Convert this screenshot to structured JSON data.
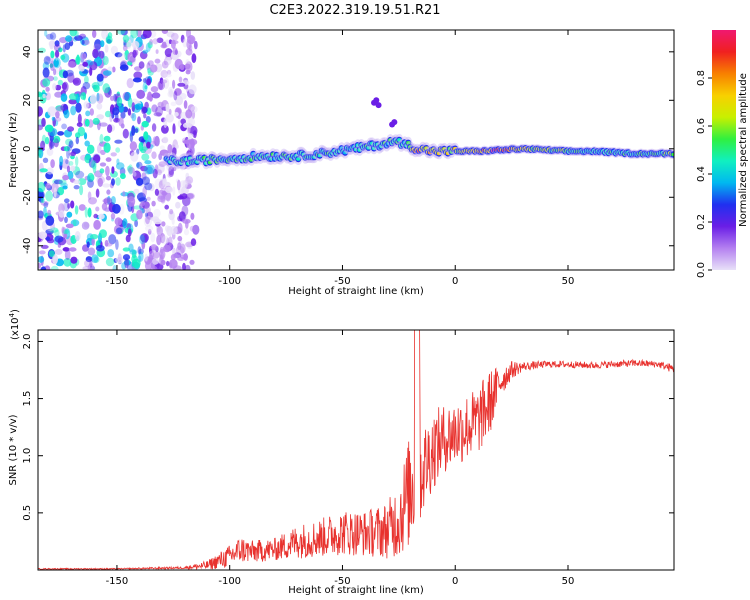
{
  "figure_title": "C2E3.2022.319.19.51.R21",
  "colors": {
    "snr_line": "#e8322e",
    "axes": "#000000"
  },
  "chart_data": [
    {
      "type": "heatmap",
      "name": "spectrogram",
      "title": "",
      "xlabel": "Height of straight line (km)",
      "ylabel": "Frequency (Hz)",
      "xlim": [
        -185,
        97
      ],
      "ylim": [
        -50,
        49
      ],
      "x_ticks": [
        -150,
        -100,
        -50,
        0,
        50
      ],
      "x_tick_labels": [
        "-150",
        "-100",
        "-50",
        "0",
        "50"
      ],
      "y_ticks": [
        -40,
        -20,
        0,
        20,
        40
      ],
      "y_tick_labels": [
        "-40",
        "-20",
        "0",
        "20",
        "40"
      ],
      "colorbar": {
        "label": "Normalized spectral amplitude",
        "range": [
          0.0,
          1.0
        ],
        "ticks": [
          0.0,
          0.2,
          0.4,
          0.6,
          0.8
        ],
        "tick_labels": [
          "0.0",
          "0.2",
          "0.4",
          "0.6",
          "0.8"
        ],
        "colormap": [
          "#e8e0f8",
          "#b480f0",
          "#6a1ee6",
          "#2030f0",
          "#00b8f0",
          "#10f0c0",
          "#30f040",
          "#c8f000",
          "#f8d000",
          "#f88000",
          "#f02020",
          "#f01870"
        ]
      },
      "ridge": {
        "x": [
          -128,
          -115,
          -100,
          -85,
          -70,
          -60,
          -52,
          -45,
          -38,
          -32,
          -27,
          -22,
          -17,
          -10,
          0,
          10,
          20,
          30,
          40,
          50,
          60,
          70,
          80,
          90,
          97
        ],
        "frequency": [
          -5,
          -5,
          -4,
          -3,
          -3,
          -2,
          -1,
          0,
          1,
          2,
          3,
          2,
          0,
          -1,
          -1,
          -1,
          -0.5,
          0,
          -0.5,
          -1,
          -1,
          -1.5,
          -2,
          -2,
          -2
        ],
        "amplitude": [
          0.45,
          0.5,
          0.5,
          0.48,
          0.48,
          0.5,
          0.45,
          0.45,
          0.5,
          0.45,
          0.5,
          0.45,
          0.9,
          0.7,
          0.65,
          0.75,
          0.95,
          0.7,
          0.65,
          0.55,
          0.45,
          0.5,
          0.5,
          0.55,
          0.6
        ]
      },
      "noise_region_x": [
        -185,
        -115
      ]
    },
    {
      "type": "line",
      "name": "snr",
      "title": "",
      "xlabel": "Height of straight line (km)",
      "ylabel": "SNR (10 * v/v)",
      "y_scale_note": "(x10",
      "y_scale_exp": "4",
      "y_scale_close": ")",
      "xlim": [
        -185,
        97
      ],
      "ylim": [
        0.0,
        2.1
      ],
      "x_ticks": [
        -150,
        -100,
        -50,
        0,
        50
      ],
      "x_tick_labels": [
        "-150",
        "-100",
        "-50",
        "0",
        "50"
      ],
      "y_ticks": [
        0.5,
        1.0,
        1.5,
        2.0
      ],
      "y_tick_labels": [
        "0.5",
        "1.0",
        "1.5",
        "2.0"
      ],
      "envelope": {
        "x": [
          -185,
          -150,
          -120,
          -110,
          -100,
          -95,
          -90,
          -80,
          -70,
          -60,
          -50,
          -40,
          -30,
          -25,
          -20,
          -17,
          -15,
          -10,
          -5,
          0,
          5,
          10,
          15,
          20,
          25,
          30,
          40,
          50,
          60,
          70,
          80,
          90,
          97
        ],
        "mean": [
          0.01,
          0.01,
          0.02,
          0.04,
          0.12,
          0.18,
          0.16,
          0.18,
          0.25,
          0.28,
          0.33,
          0.32,
          0.35,
          0.45,
          0.7,
          0.9,
          0.85,
          1.05,
          1.15,
          1.2,
          1.25,
          1.3,
          1.45,
          1.65,
          1.75,
          1.78,
          1.8,
          1.8,
          1.79,
          1.8,
          1.81,
          1.8,
          1.76
        ],
        "noise": [
          0.005,
          0.005,
          0.01,
          0.04,
          0.1,
          0.12,
          0.1,
          0.1,
          0.15,
          0.17,
          0.2,
          0.2,
          0.25,
          0.35,
          0.5,
          0.6,
          0.4,
          0.35,
          0.3,
          0.3,
          0.3,
          0.3,
          0.3,
          0.15,
          0.08,
          0.04,
          0.03,
          0.03,
          0.03,
          0.03,
          0.03,
          0.03,
          0.04
        ]
      }
    }
  ]
}
